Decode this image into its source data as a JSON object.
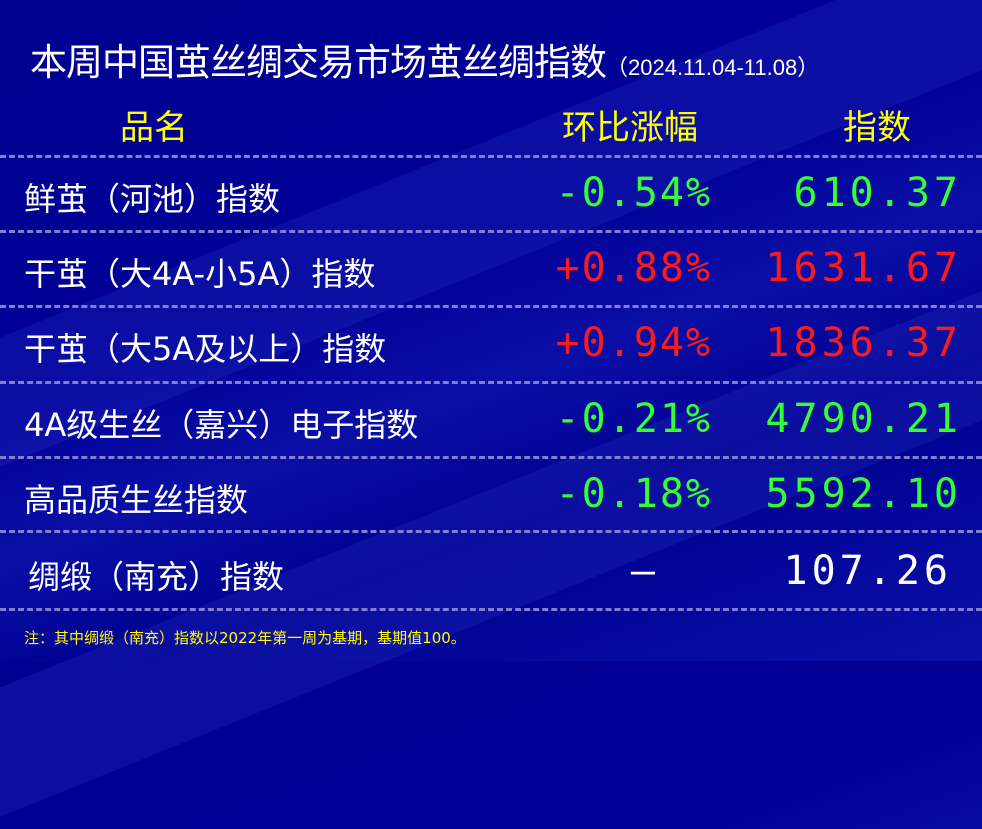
{
  "title": "本周中国茧丝绸交易市场茧丝绸指数",
  "date_range": "（2024.11.04-11.08）",
  "headers": {
    "name": "品名",
    "change": "环比涨幅",
    "index": "指数"
  },
  "colors": {
    "up": "#ff1a1a",
    "down": "#33ff33",
    "flat": "#ffffff",
    "header": "#ffff00"
  },
  "rows": [
    {
      "name": "鲜茧（河池）指数",
      "change": "-0.54%",
      "index": "610.37",
      "trend": "down"
    },
    {
      "name": "干茧（大4A-小5A）指数",
      "change": "+0.88%",
      "index": "1631.67",
      "trend": "up"
    },
    {
      "name": "干茧（大5A及以上）指数",
      "change": "+0.94%",
      "index": "1836.37",
      "trend": "up"
    },
    {
      "name": "4A级生丝（嘉兴）电子指数",
      "change": "-0.21%",
      "index": "4790.21",
      "trend": "down"
    },
    {
      "name": "高品质生丝指数",
      "change": "-0.18%",
      "index": "5592.10",
      "trend": "down"
    },
    {
      "name": "绸缎（南充）指数",
      "change": "—",
      "index": "107.26",
      "trend": "flat"
    }
  ],
  "note": "注：其中绸缎（南充）指数以2022年第一周为基期，基期值100。"
}
